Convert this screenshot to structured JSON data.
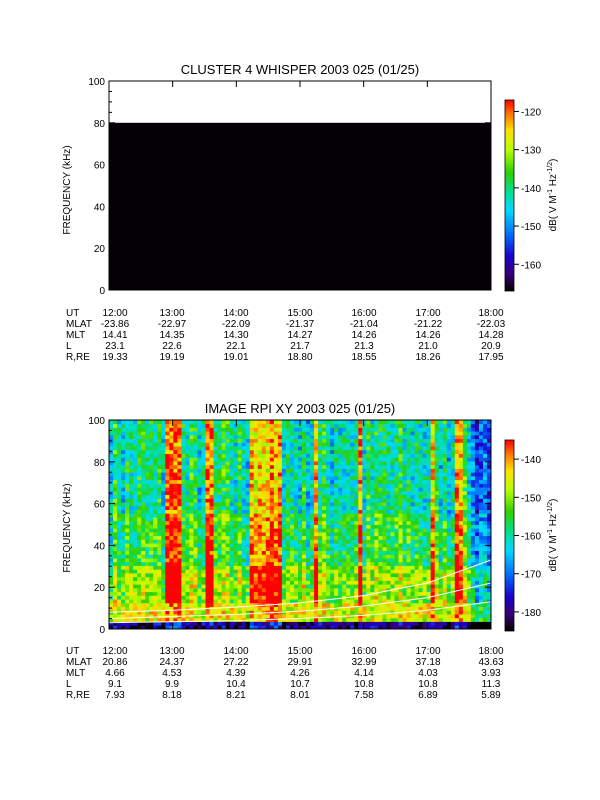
{
  "chart_data": [
    {
      "type": "heatmap",
      "title": "CLUSTER 4 WHISPER 2003 025 (01/25)",
      "ylabel": "FREQUENCY (kHz)",
      "ylim": [
        0,
        100
      ],
      "yticks": [
        "0",
        "20",
        "40",
        "60",
        "80",
        "100"
      ],
      "xticks": [
        "12:00",
        "13:00",
        "14:00",
        "15:00",
        "16:00",
        "17:00",
        "18:00"
      ],
      "xlim_hours": [
        12,
        18
      ],
      "data_ceiling_khz": 80,
      "fill_description": "uniform black (no data)",
      "colorbar": {
        "label": "dB( V M^-1 Hz^-1/2)",
        "label_parts": {
          "pre": "dB( V M",
          "exp1": "-1",
          "mid": " Hz",
          "exp2": "-1/2",
          "post": ")"
        },
        "ticks": [
          "-120",
          "-130",
          "-140",
          "-150",
          "-160"
        ],
        "range": [
          -167,
          -117
        ]
      },
      "ephemeris": {
        "labels": [
          "UT",
          "MLAT",
          "MLT",
          "L",
          "R,RE"
        ],
        "rows": [
          [
            "12:00",
            "13:00",
            "14:00",
            "15:00",
            "16:00",
            "17:00",
            "18:00"
          ],
          [
            "-23.86",
            "-22.97",
            "-22.09",
            "-21.37",
            "-21.04",
            "-21.22",
            "-22.03"
          ],
          [
            "14.41",
            "14.35",
            "14.30",
            "14.27",
            "14.26",
            "14.26",
            "14.28"
          ],
          [
            "23.1",
            "22.6",
            "22.1",
            "21.7",
            "21.3",
            "21.0",
            "20.9"
          ],
          [
            "19.33",
            "19.19",
            "19.01",
            "18.80",
            "18.55",
            "18.26",
            "17.95"
          ]
        ]
      }
    },
    {
      "type": "heatmap",
      "title": "IMAGE RPI XY 2003 025 (01/25)",
      "ylabel": "FREQUENCY (kHz)",
      "ylim": [
        0,
        100
      ],
      "yticks": [
        "0",
        "20",
        "40",
        "60",
        "80",
        "100"
      ],
      "xticks": [
        "12:00",
        "13:00",
        "14:00",
        "15:00",
        "16:00",
        "17:00",
        "18:00"
      ],
      "xlim_hours": [
        12,
        18
      ],
      "colorbar": {
        "label": "dB( V M^-1 Hz^-1/2)",
        "label_parts": {
          "pre": "dB( V M",
          "exp1": "-1",
          "mid": " Hz",
          "exp2": "-1/2",
          "post": ")"
        },
        "ticks": [
          "-140",
          "-150",
          "-160",
          "-170",
          "-180"
        ],
        "range": [
          -185,
          -135
        ]
      },
      "overlay_curves": [
        {
          "hours": [
            12,
            13,
            14,
            15,
            16,
            17,
            18
          ],
          "khz": [
            8,
            9,
            10.5,
            12.5,
            16,
            22,
            33
          ]
        },
        {
          "hours": [
            12,
            13,
            14,
            15,
            16,
            17,
            18
          ],
          "khz": [
            5,
            6,
            7,
            8.5,
            11,
            15,
            22
          ]
        },
        {
          "hours": [
            12,
            13,
            14,
            15,
            16,
            17,
            18
          ],
          "khz": [
            3,
            3.5,
            4,
            5,
            6.5,
            9,
            13
          ]
        }
      ],
      "ephemeris": {
        "labels": [
          "UT",
          "MLAT",
          "MLT",
          "L",
          "R,RE"
        ],
        "rows": [
          [
            "12:00",
            "13:00",
            "14:00",
            "15:00",
            "16:00",
            "17:00",
            "18:00"
          ],
          [
            "20.86",
            "24.37",
            "27.22",
            "29.91",
            "32.99",
            "37.18",
            "43.63"
          ],
          [
            "4.66",
            "4.53",
            "4.39",
            "4.26",
            "4.14",
            "4.03",
            "3.93"
          ],
          [
            "9.1",
            "9.9",
            "10.4",
            "10.7",
            "10.8",
            "10.8",
            "11.3"
          ],
          [
            "7.93",
            "8.18",
            "8.21",
            "8.01",
            "7.58",
            "6.89",
            "5.89"
          ]
        ]
      }
    }
  ]
}
